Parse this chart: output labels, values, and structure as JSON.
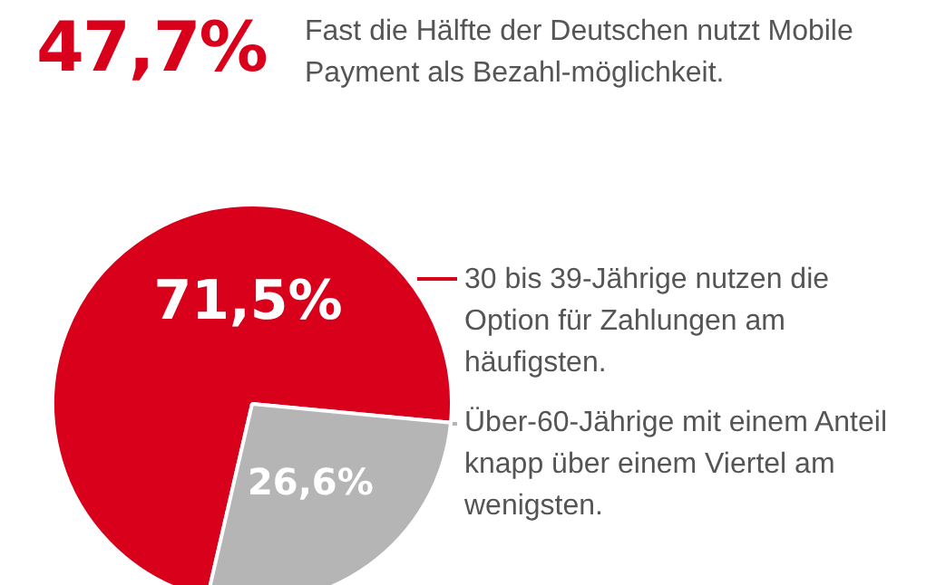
{
  "chart_data": {
    "type": "pie",
    "title": "47,7%",
    "subtitle": "Fast die Hälfte der Deutschen nutzt Mobile Payment als Bezahl-möglichkeit.",
    "categories": [
      null,
      null
    ],
    "values": [
      71.5,
      26.6
    ],
    "colors": [
      "#d9001b",
      "#b5b5b5"
    ],
    "value_labels": [
      "71,5%",
      "26,6%"
    ],
    "annotations": [
      "30 bis 39-Jährige nutzen die Option für Zahlungen am häufigsten.",
      "Über-60-Jährige mit einem Anteil knapp über einem Viertel am wenigsten."
    ],
    "legend": false
  }
}
